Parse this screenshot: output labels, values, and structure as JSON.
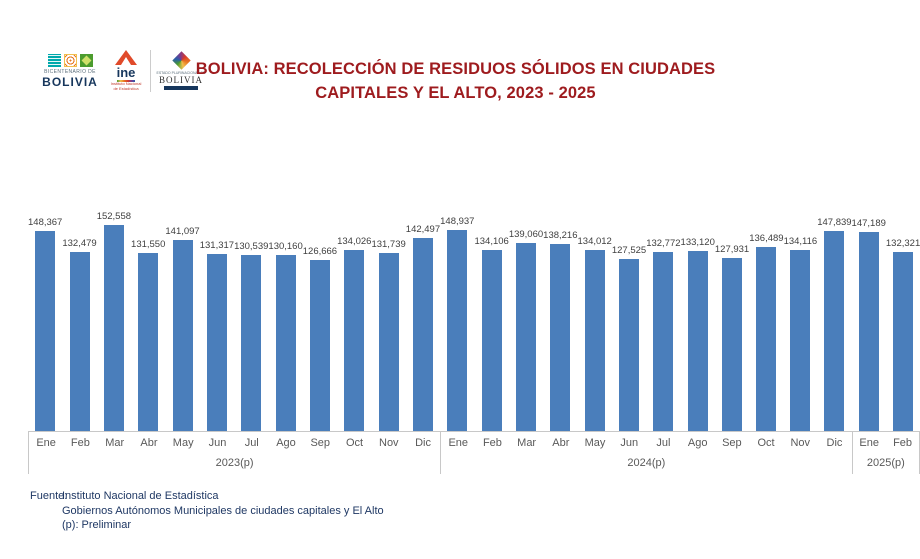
{
  "header": {
    "title_line1": "BOLIVIA: RECOLECCIÓN DE RESIDUOS SÓLIDOS EN CIUDADES",
    "title_line2": "CAPITALES Y EL ALTO, 2023 - 2025",
    "logos": {
      "bicentenario_top": "BICENTENARIO DE",
      "bicentenario_name": "BOLIVIA",
      "ine_name": "ine",
      "ine_sub1": "Instituto Nacional",
      "ine_sub2": "de Estadística",
      "ministry_top": "ESTADO PLURINACIONAL DE",
      "ministry_name": "BOLIVIA"
    }
  },
  "chart_data": {
    "type": "bar",
    "title": "BOLIVIA: RECOLECCIÓN DE RESIDUOS SÓLIDOS EN CIUDADES CAPITALES Y EL ALTO, 2023 - 2025",
    "ylim": [
      0,
      160000
    ],
    "grid": false,
    "legend": false,
    "value_labels": true,
    "bar_color": "#4a7ebb",
    "groups": [
      {
        "year": "2023(p)",
        "months": [
          "Ene",
          "Feb",
          "Mar",
          "Abr",
          "May",
          "Jun",
          "Jul",
          "Ago",
          "Sep",
          "Oct",
          "Nov",
          "Dic"
        ],
        "values": [
          148367,
          132479,
          152558,
          131550,
          141097,
          131317,
          130539,
          130160,
          126666,
          134026,
          131739,
          142497
        ]
      },
      {
        "year": "2024(p)",
        "months": [
          "Ene",
          "Feb",
          "Mar",
          "Abr",
          "May",
          "Jun",
          "Jul",
          "Ago",
          "Sep",
          "Oct",
          "Nov",
          "Dic"
        ],
        "values": [
          148937,
          134106,
          139060,
          138216,
          134012,
          127525,
          132772,
          133120,
          127931,
          136489,
          134116,
          147839
        ]
      },
      {
        "year": "2025(p)",
        "months": [
          "Ene",
          "Feb"
        ],
        "values": [
          147189,
          132321
        ]
      }
    ],
    "colors": {
      "bar": "#4a7ebb",
      "title_text": "#9e1b1e",
      "axis_line": "#c8c8c8",
      "tick_label": "#595959",
      "value_label": "#3f3f3f",
      "footer_text": "#1f3864"
    }
  },
  "footer": {
    "source_label": "Fuente:",
    "source_line1": "Instituto Nacional de Estadística",
    "source_line2": "Gobiernos Autónomos Municipales de ciudades capitales y El Alto",
    "note": "(p): Preliminar"
  }
}
